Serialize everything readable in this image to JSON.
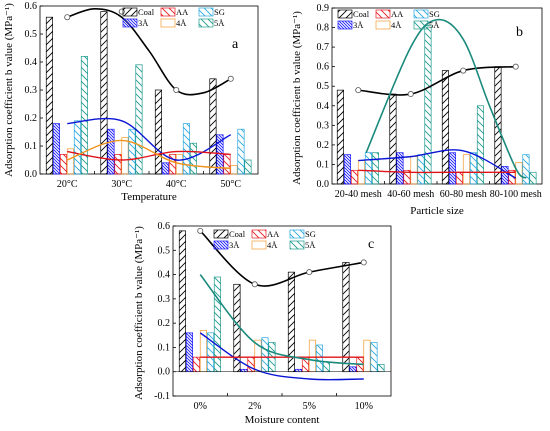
{
  "chart_data": [
    {
      "type": "bar",
      "panel_label": "a",
      "title": "",
      "xlabel": "Temperature",
      "ylabel": "Adsorption coefficient b value (MPa⁻¹)",
      "ylim": [
        0,
        0.6
      ],
      "yticks": [
        "0.0",
        "0.1",
        "0.2",
        "0.3",
        "0.4",
        "0.5",
        "0.6"
      ],
      "categories": [
        "20°C",
        "30°C",
        "40°C",
        "50°C"
      ],
      "legend_position": "top-right",
      "series": [
        {
          "name": "Coal",
          "values": [
            0.56,
            0.58,
            0.3,
            0.34
          ]
        },
        {
          "name": "3Å",
          "values": [
            0.18,
            0.16,
            0.04,
            0.14
          ]
        },
        {
          "name": "AA",
          "values": [
            0.07,
            0.07,
            0.07,
            0.07
          ]
        },
        {
          "name": "4Å",
          "values": [
            0.09,
            0.13,
            0.07,
            0.03
          ]
        },
        {
          "name": "SG",
          "values": [
            0.19,
            0.16,
            0.18,
            0.16
          ]
        },
        {
          "name": "5Å",
          "values": [
            0.42,
            0.39,
            0.11,
            0.05
          ]
        }
      ],
      "curves": [
        {
          "series": "Coal",
          "points": [
            [
              0,
              0.56
            ],
            [
              0.5,
              0.59
            ],
            [
              1,
              0.56
            ],
            [
              1.5,
              0.44
            ],
            [
              2,
              0.3
            ],
            [
              2.5,
              0.29
            ],
            [
              3,
              0.34
            ]
          ]
        },
        {
          "series": "3Å",
          "points": [
            [
              0,
              0.18
            ],
            [
              1,
              0.19
            ],
            [
              2,
              0.05
            ],
            [
              3,
              0.14
            ]
          ]
        },
        {
          "series": "AA",
          "points": [
            [
              0,
              0.08
            ],
            [
              1,
              0.05
            ],
            [
              2,
              0.08
            ],
            [
              3,
              0.07
            ]
          ]
        },
        {
          "series": "4Å",
          "points": [
            [
              0,
              0.05
            ],
            [
              1,
              0.12
            ],
            [
              2,
              0.04
            ],
            [
              3,
              0.02
            ]
          ]
        }
      ]
    },
    {
      "type": "bar",
      "panel_label": "b",
      "title": "",
      "xlabel": "Particle size",
      "ylabel": "Adsorption coefficient b value (MPa⁻¹)",
      "ylim": [
        0,
        0.9
      ],
      "yticks": [
        "0.0",
        "0.1",
        "0.2",
        "0.3",
        "0.4",
        "0.5",
        "0.6",
        "0.7",
        "0.8",
        "0.9"
      ],
      "categories": [
        "20-40 mesh",
        "40-60 mesh",
        "60-80 mesh",
        "80-100 mesh"
      ],
      "legend_position": "top-left",
      "series": [
        {
          "name": "Coal",
          "values": [
            0.48,
            0.46,
            0.58,
            0.6
          ]
        },
        {
          "name": "3Å",
          "values": [
            0.15,
            0.16,
            0.16,
            0.09
          ]
        },
        {
          "name": "AA",
          "values": [
            0.07,
            0.07,
            0.06,
            0.07
          ]
        },
        {
          "name": "4Å",
          "values": [
            0.12,
            0.14,
            0.15,
            0.11
          ]
        },
        {
          "name": "SG",
          "values": [
            0.16,
            0.15,
            0.16,
            0.15
          ]
        },
        {
          "name": "5Å",
          "values": [
            0.16,
            0.81,
            0.4,
            0.06
          ]
        }
      ],
      "curves": [
        {
          "series": "Coal",
          "points": [
            [
              0,
              0.48
            ],
            [
              1,
              0.46
            ],
            [
              2,
              0.58
            ],
            [
              3,
              0.6
            ]
          ]
        },
        {
          "series": "3Å",
          "points": [
            [
              0,
              0.12
            ],
            [
              1,
              0.14
            ],
            [
              2,
              0.17
            ],
            [
              3,
              0.03
            ]
          ]
        },
        {
          "series": "AA",
          "points": [
            [
              0,
              0.07
            ],
            [
              1,
              0.06
            ],
            [
              2,
              0.06
            ],
            [
              3,
              0.06
            ]
          ]
        },
        {
          "series": "5Å",
          "points": [
            [
              0.15,
              0.16
            ],
            [
              1,
              0.7
            ],
            [
              1.5,
              0.84
            ],
            [
              2,
              0.74
            ],
            [
              2.5,
              0.4
            ],
            [
              3,
              0.08
            ],
            [
              3.2,
              0.03
            ]
          ]
        }
      ]
    },
    {
      "type": "bar",
      "panel_label": "c",
      "title": "",
      "xlabel": "Moisture content",
      "ylabel": "Adsorption coefficient b value (MPa⁻¹)",
      "ylim": [
        -0.1,
        0.6
      ],
      "yticks": [
        "-0.1",
        "0.0",
        "0.1",
        "0.2",
        "0.3",
        "0.4",
        "0.5",
        "0.6"
      ],
      "categories": [
        "0%",
        "2%",
        "5%",
        "10%"
      ],
      "legend_position": "top-right",
      "series": [
        {
          "name": "Coal",
          "values": [
            0.58,
            0.36,
            0.41,
            0.45
          ]
        },
        {
          "name": "3Å",
          "values": [
            0.16,
            0.01,
            0.01,
            0.02
          ]
        },
        {
          "name": "AA",
          "values": [
            0.06,
            0.06,
            0.06,
            0.06
          ]
        },
        {
          "name": "4Å",
          "values": [
            0.17,
            0.13,
            0.13,
            0.13
          ]
        },
        {
          "name": "SG",
          "values": [
            0.16,
            0.14,
            0.11,
            0.12
          ]
        },
        {
          "name": "5Å",
          "values": [
            0.39,
            0.12,
            0.04,
            0.03
          ]
        }
      ],
      "curves": [
        {
          "series": "Coal",
          "points": [
            [
              0,
              0.58
            ],
            [
              1,
              0.36
            ],
            [
              2,
              0.41
            ],
            [
              3,
              0.45
            ]
          ]
        },
        {
          "series": "3Å",
          "points": [
            [
              0,
              0.16
            ],
            [
              1,
              0.01
            ],
            [
              2,
              -0.03
            ],
            [
              3,
              -0.03
            ]
          ]
        },
        {
          "series": "AA",
          "points": [
            [
              0,
              0.06
            ],
            [
              1,
              0.06
            ],
            [
              2,
              0.06
            ],
            [
              3,
              0.06
            ]
          ]
        },
        {
          "series": "5Å",
          "points": [
            [
              0,
              0.4
            ],
            [
              1,
              0.12
            ],
            [
              2,
              0.05
            ],
            [
              3,
              0.03
            ]
          ]
        }
      ]
    }
  ],
  "legend_items": [
    {
      "name": "Coal",
      "color": "#000000",
      "pattern": "hatch-left"
    },
    {
      "name": "AA",
      "color": "#e8191f",
      "pattern": "hatch-right"
    },
    {
      "name": "SG",
      "color": "#2aa7e0",
      "pattern": "hatch-right"
    },
    {
      "name": "3Å",
      "color": "#1a1aff",
      "pattern": "dense-hatch"
    },
    {
      "name": "4Å",
      "color": "#f39b2f",
      "pattern": "empty"
    },
    {
      "name": "5Å",
      "color": "#1e9a8c",
      "pattern": "hatch-right"
    }
  ],
  "curve_colors": {
    "Coal": "#000000",
    "3Å": "#0b15d6",
    "AA": "#e0131a",
    "4Å": "#f0921b",
    "5Å": "#1a8a7c"
  }
}
